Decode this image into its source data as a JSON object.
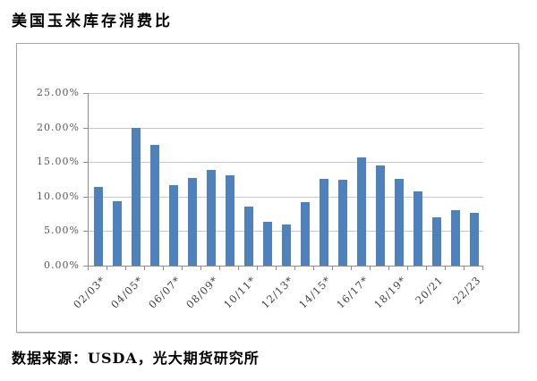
{
  "page": {
    "title": "美国玉米库存消费比",
    "source_note": "数据来源：USDA，光大期货研究所"
  },
  "colors": {
    "bar_fill": "#4F81BD",
    "gridline": "#C9C9C9",
    "axis_line": "#8C8C8C",
    "axis_text": "#595959",
    "chart_border": "#A6A6A6",
    "title_text": "#000000"
  },
  "chart_data": {
    "type": "bar",
    "title": "美国玉米库存消费比",
    "xlabel": "",
    "ylabel": "",
    "ylim": [
      0,
      25
    ],
    "y_tick_values": [
      0,
      5,
      10,
      15,
      20,
      25
    ],
    "y_tick_labels": [
      "0.00%",
      "5.00%",
      "10.00%",
      "15.00%",
      "20.00%",
      "25.00%"
    ],
    "grid": "horizontal",
    "legend": "none",
    "x_label_rotation": 45,
    "categories": [
      "02/03*",
      "",
      "04/05*",
      "",
      "06/07*",
      "",
      "08/09*",
      "",
      "10/11*",
      "",
      "12/13*",
      "",
      "14/15*",
      "",
      "16/17*",
      "",
      "18/19*",
      "",
      "20/21",
      "",
      "22/23"
    ],
    "values": [
      11.4,
      9.3,
      19.9,
      17.5,
      11.6,
      12.7,
      13.9,
      13.1,
      8.6,
      6.3,
      5.9,
      9.2,
      12.6,
      12.5,
      15.7,
      14.5,
      12.6,
      10.7,
      7.0,
      8.0,
      7.7
    ],
    "unit": "%"
  }
}
